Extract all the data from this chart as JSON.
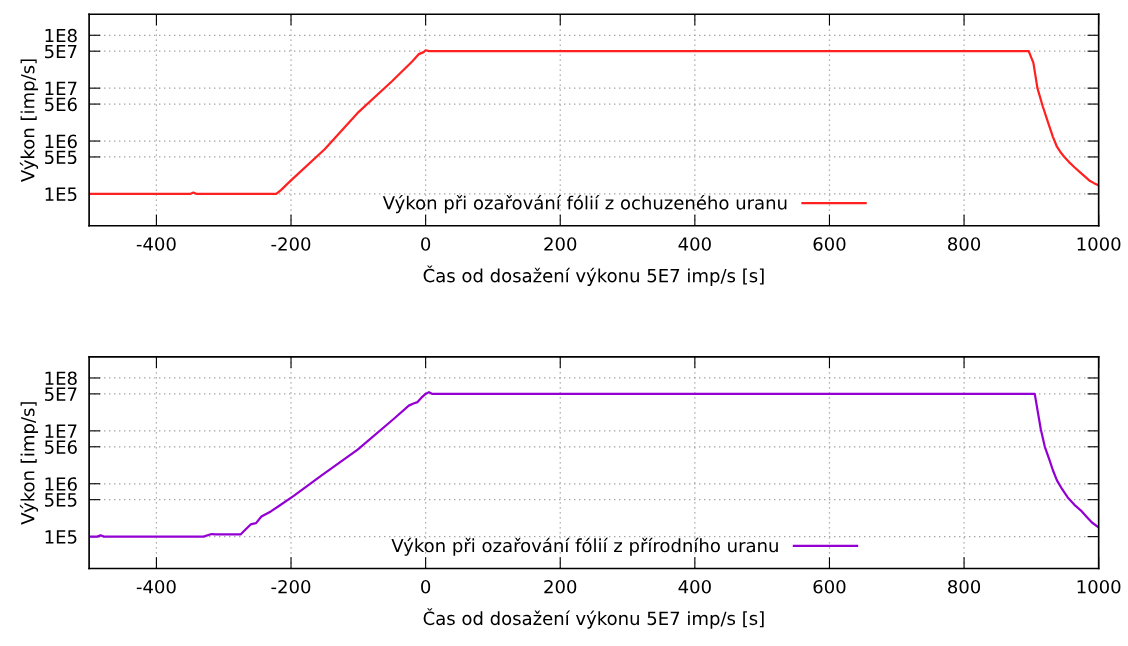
{
  "chart_data": [
    {
      "type": "line",
      "xlabel": "Čas od dosažení výkonu 5E7 imp/s [s]",
      "ylabel": "Výkon [imp/s]",
      "log": "y",
      "grid": true,
      "legend": "bottom",
      "line_style": "solid",
      "marker": "none",
      "xlim": [
        -500,
        1000
      ],
      "xticks": [
        -400,
        -200,
        0,
        200,
        400,
        600,
        800,
        1000
      ],
      "ylim": [
        25000,
        250000000
      ],
      "yticks": [
        {
          "value": 100000,
          "label": "1E5"
        },
        {
          "value": 500000,
          "label": "5E5"
        },
        {
          "value": 1000000,
          "label": "1E6"
        },
        {
          "value": 5000000,
          "label": "5E6"
        },
        {
          "value": 10000000,
          "label": "1E7"
        },
        {
          "value": 50000000,
          "label": "5E7"
        },
        {
          "value": 100000000,
          "label": "1E8"
        }
      ],
      "series": [
        {
          "name": "Výkon při ozařování fólií z ochuzeného uranu",
          "color": "#ff2020",
          "x": [
            -500,
            -400,
            -350,
            -345,
            -340,
            -300,
            -250,
            -222,
            -215,
            -200,
            -150,
            -101,
            -50,
            -20,
            -10,
            -3,
            0,
            5,
            100,
            300,
            500,
            700,
            850,
            896,
            903,
            909,
            917,
            925,
            932,
            938,
            944,
            949,
            956,
            964,
            975,
            986,
            993,
            1000
          ],
          "values": [
            100000,
            100000,
            100000,
            106000,
            100000,
            100000,
            100000,
            100000,
            118000,
            180000,
            700000,
            3400000,
            13500000,
            32000000,
            44000000,
            48000000,
            52000000,
            50000000,
            50000000,
            50000000,
            50000000,
            50000000,
            50000000,
            50000000,
            30000000,
            10000000,
            4500000,
            2200000,
            1200000,
            780000,
            600000,
            500000,
            400000,
            320000,
            240000,
            180000,
            160000,
            145000
          ]
        }
      ]
    },
    {
      "type": "line",
      "xlabel": "Čas od dosažení výkonu 5E7 imp/s [s]",
      "ylabel": "Výkon [imp/s]",
      "log": "y",
      "grid": true,
      "legend": "bottom",
      "line_style": "solid",
      "marker": "none",
      "xlim": [
        -500,
        1000
      ],
      "xticks": [
        -400,
        -200,
        0,
        200,
        400,
        600,
        800,
        1000
      ],
      "ylim": [
        25000,
        250000000
      ],
      "yticks": [
        {
          "value": 100000,
          "label": "1E5"
        },
        {
          "value": 500000,
          "label": "5E5"
        },
        {
          "value": 1000000,
          "label": "1E6"
        },
        {
          "value": 5000000,
          "label": "5E6"
        },
        {
          "value": 10000000,
          "label": "1E7"
        },
        {
          "value": 50000000,
          "label": "5E7"
        },
        {
          "value": 100000000,
          "label": "1E8"
        }
      ],
      "series": [
        {
          "name": "Výkon při ozařování fólií z přírodního uranu",
          "color": "#9400d3",
          "x": [
            -500,
            -488,
            -483,
            -478,
            -400,
            -330,
            -318,
            -312,
            -275,
            -268,
            -260,
            -252,
            -244,
            -230,
            -218,
            -196,
            -154,
            -101,
            -48,
            -25,
            -18,
            -12,
            -5,
            0,
            5,
            10,
            100,
            300,
            500,
            700,
            850,
            905,
            914,
            920,
            927,
            932,
            938,
            946,
            954,
            964,
            975,
            983,
            990,
            1000
          ],
          "values": [
            100000,
            100000,
            106000,
            100000,
            100000,
            100000,
            112000,
            110000,
            110000,
            135000,
            170000,
            180000,
            240000,
            300000,
            380000,
            590000,
            1450000,
            4400000,
            16600000,
            30000000,
            33000000,
            35000000,
            44000000,
            50000000,
            54000000,
            50000000,
            50000000,
            50000000,
            50000000,
            50000000,
            50000000,
            50000000,
            10700000,
            5000000,
            2800000,
            1800000,
            1160000,
            780000,
            550000,
            400000,
            300000,
            230000,
            185000,
            150000
          ]
        }
      ]
    }
  ]
}
